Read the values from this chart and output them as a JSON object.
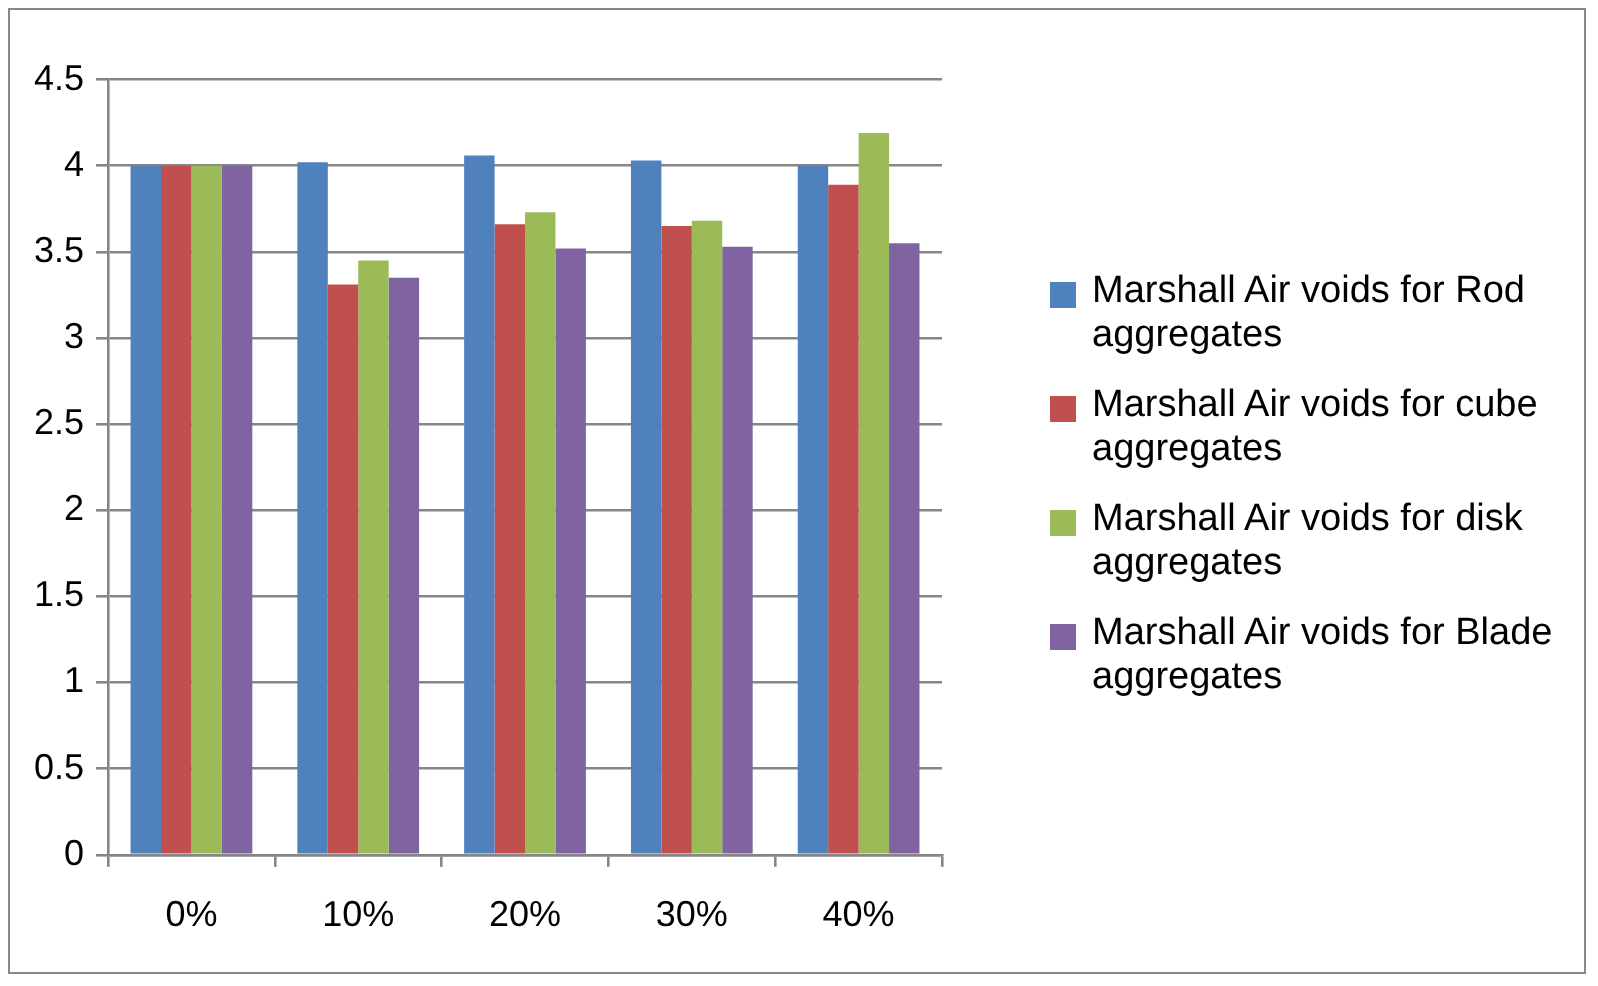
{
  "chart_data": {
    "type": "bar",
    "categories": [
      "0%",
      "10%",
      "20%",
      "30%",
      "40%"
    ],
    "series": [
      {
        "name": "Marshall Air voids for Rod aggregates",
        "color": "#4f81bd",
        "values": [
          4.0,
          4.02,
          4.06,
          4.03,
          4.0
        ]
      },
      {
        "name": "Marshall Air voids for cube aggregates",
        "color": "#c0504d",
        "values": [
          4.0,
          3.31,
          3.66,
          3.65,
          3.89
        ]
      },
      {
        "name": "Marshall Air voids for disk aggregates",
        "color": "#9bbb59",
        "values": [
          4.0,
          3.45,
          3.73,
          3.68,
          4.19
        ]
      },
      {
        "name": "Marshall Air voids for Blade aggregates",
        "color": "#8064a2",
        "values": [
          4.0,
          3.35,
          3.52,
          3.53,
          3.55
        ]
      }
    ],
    "ylim": [
      0,
      4.5
    ],
    "yticks": [
      0,
      0.5,
      1,
      1.5,
      2,
      2.5,
      3,
      3.5,
      4,
      4.5
    ],
    "grid": "y",
    "legend": "right"
  }
}
